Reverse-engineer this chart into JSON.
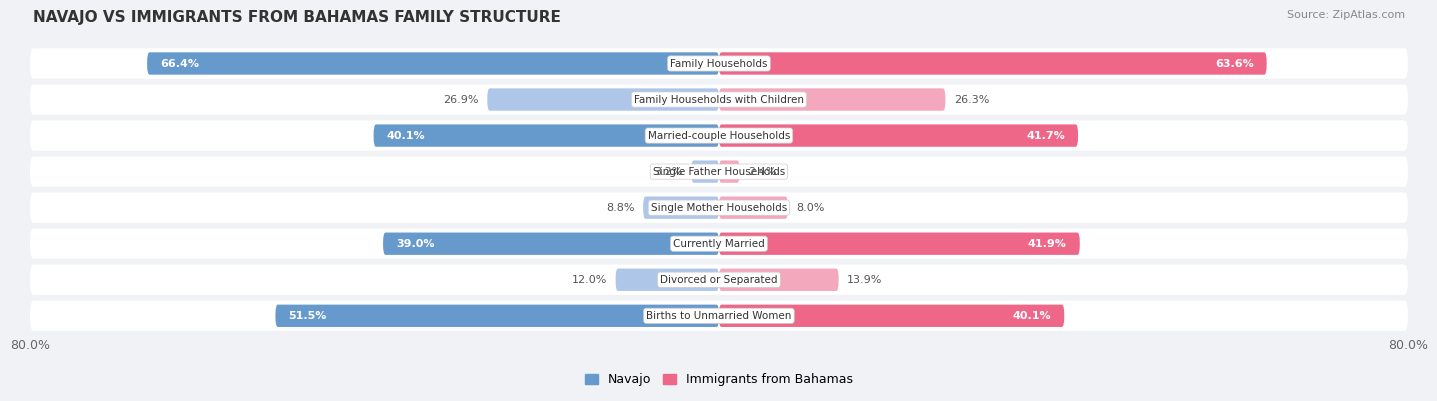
{
  "title": "NAVAJO VS IMMIGRANTS FROM BAHAMAS FAMILY STRUCTURE",
  "source": "Source: ZipAtlas.com",
  "categories": [
    "Family Households",
    "Family Households with Children",
    "Married-couple Households",
    "Single Father Households",
    "Single Mother Households",
    "Currently Married",
    "Divorced or Separated",
    "Births to Unmarried Women"
  ],
  "navajo_values": [
    66.4,
    26.9,
    40.1,
    3.2,
    8.8,
    39.0,
    12.0,
    51.5
  ],
  "bahamas_values": [
    63.6,
    26.3,
    41.7,
    2.4,
    8.0,
    41.9,
    13.9,
    40.1
  ],
  "navajo_color_strong": "#6699cc",
  "navajo_color_light": "#aec6e8",
  "bahamas_color_strong": "#ee6688",
  "bahamas_color_light": "#f4a8be",
  "axis_min": -80.0,
  "axis_max": 80.0,
  "background_color": "#f0f2f5",
  "row_bg_color": "#e4e8ee",
  "row_alt_color": "#eef0f4",
  "legend_navajo": "Navajo",
  "legend_bahamas": "Immigrants from Bahamas",
  "strong_threshold": 30.0
}
